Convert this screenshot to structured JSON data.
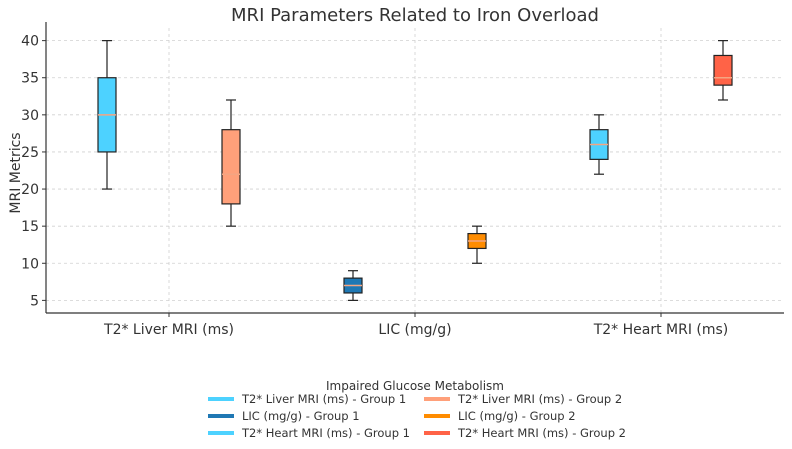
{
  "chart_data": {
    "type": "box",
    "title": "MRI Parameters Related to Iron Overload",
    "xlabel": "",
    "ylabel": "MRI Metrics",
    "categories": [
      "T2* Liver MRI (ms)",
      "LIC (mg/g)",
      "T2* Heart MRI (ms)"
    ],
    "ylim": [
      3.3,
      41.7
    ],
    "yticks": [
      5,
      10,
      15,
      20,
      25,
      30,
      35,
      40
    ],
    "grid": true,
    "legend_title": "Impaired Glucose Metabolism",
    "legend_position": "bottom-center",
    "boxes": [
      {
        "label": "T2* Liver MRI (ms) - Group 1",
        "category": 0,
        "group": 1,
        "color": "#4DD2FF",
        "median_color": "#F4A582",
        "whisker_low": 20,
        "q1": 25,
        "median": 30,
        "q3": 35,
        "whisker_high": 40
      },
      {
        "label": "T2* Liver MRI (ms) - Group 2",
        "category": 0,
        "group": 2,
        "color": "#FFA07A",
        "median_color": "#F4A582",
        "whisker_low": 15,
        "q1": 18,
        "median": 22,
        "q3": 28,
        "whisker_high": 32
      },
      {
        "label": "LIC (mg/g) - Group 1",
        "category": 1,
        "group": 1,
        "color": "#1F78B4",
        "median_color": "#F4A582",
        "whisker_low": 5,
        "q1": 6,
        "median": 7,
        "q3": 8,
        "whisker_high": 9
      },
      {
        "label": "LIC (mg/g) - Group 2",
        "category": 1,
        "group": 2,
        "color": "#FF8C00",
        "median_color": "#F4A582",
        "whisker_low": 10,
        "q1": 12,
        "median": 13,
        "q3": 14,
        "whisker_high": 15
      },
      {
        "label": "T2* Heart MRI (ms) - Group 1",
        "category": 2,
        "group": 1,
        "color": "#4DD2FF",
        "median_color": "#F4A582",
        "whisker_low": 22,
        "q1": 24,
        "median": 26,
        "q3": 28,
        "whisker_high": 30
      },
      {
        "label": "T2* Heart MRI (ms) - Group 2",
        "category": 2,
        "group": 2,
        "color": "#FF6347",
        "median_color": "#F4A582",
        "whisker_low": 32,
        "q1": 34,
        "median": 35,
        "q3": 38,
        "whisker_high": 40
      }
    ]
  }
}
